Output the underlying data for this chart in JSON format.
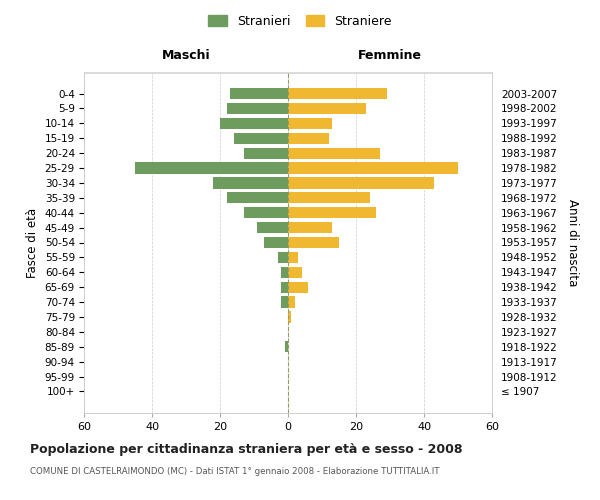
{
  "age_groups": [
    "100+",
    "95-99",
    "90-94",
    "85-89",
    "80-84",
    "75-79",
    "70-74",
    "65-69",
    "60-64",
    "55-59",
    "50-54",
    "45-49",
    "40-44",
    "35-39",
    "30-34",
    "25-29",
    "20-24",
    "15-19",
    "10-14",
    "5-9",
    "0-4"
  ],
  "birth_years": [
    "≤ 1907",
    "1908-1912",
    "1913-1917",
    "1918-1922",
    "1923-1927",
    "1928-1932",
    "1933-1937",
    "1938-1942",
    "1943-1947",
    "1948-1952",
    "1953-1957",
    "1958-1962",
    "1963-1967",
    "1968-1972",
    "1973-1977",
    "1978-1982",
    "1983-1987",
    "1988-1992",
    "1993-1997",
    "1998-2002",
    "2003-2007"
  ],
  "males": [
    0,
    0,
    0,
    1,
    0,
    0,
    2,
    2,
    2,
    3,
    7,
    9,
    13,
    18,
    22,
    45,
    13,
    16,
    20,
    18,
    17
  ],
  "females": [
    0,
    0,
    0,
    0,
    0,
    1,
    2,
    6,
    4,
    3,
    15,
    13,
    26,
    24,
    43,
    50,
    27,
    12,
    13,
    23,
    29
  ],
  "male_color": "#6e9b5e",
  "female_color": "#f0b830",
  "grid_color": "#cccccc",
  "bg_color": "#ffffff",
  "title": "Popolazione per cittadinanza straniera per età e sesso - 2008",
  "subtitle": "COMUNE DI CASTELRAIMONDO (MC) - Dati ISTAT 1° gennaio 2008 - Elaborazione TUTTITALIA.IT",
  "ylabel_left": "Fasce di età",
  "ylabel_right": "Anni di nascita",
  "xlabel_left": "Maschi",
  "xlabel_right": "Femmine",
  "legend_male": "Stranieri",
  "legend_female": "Straniere",
  "xlim": 60
}
